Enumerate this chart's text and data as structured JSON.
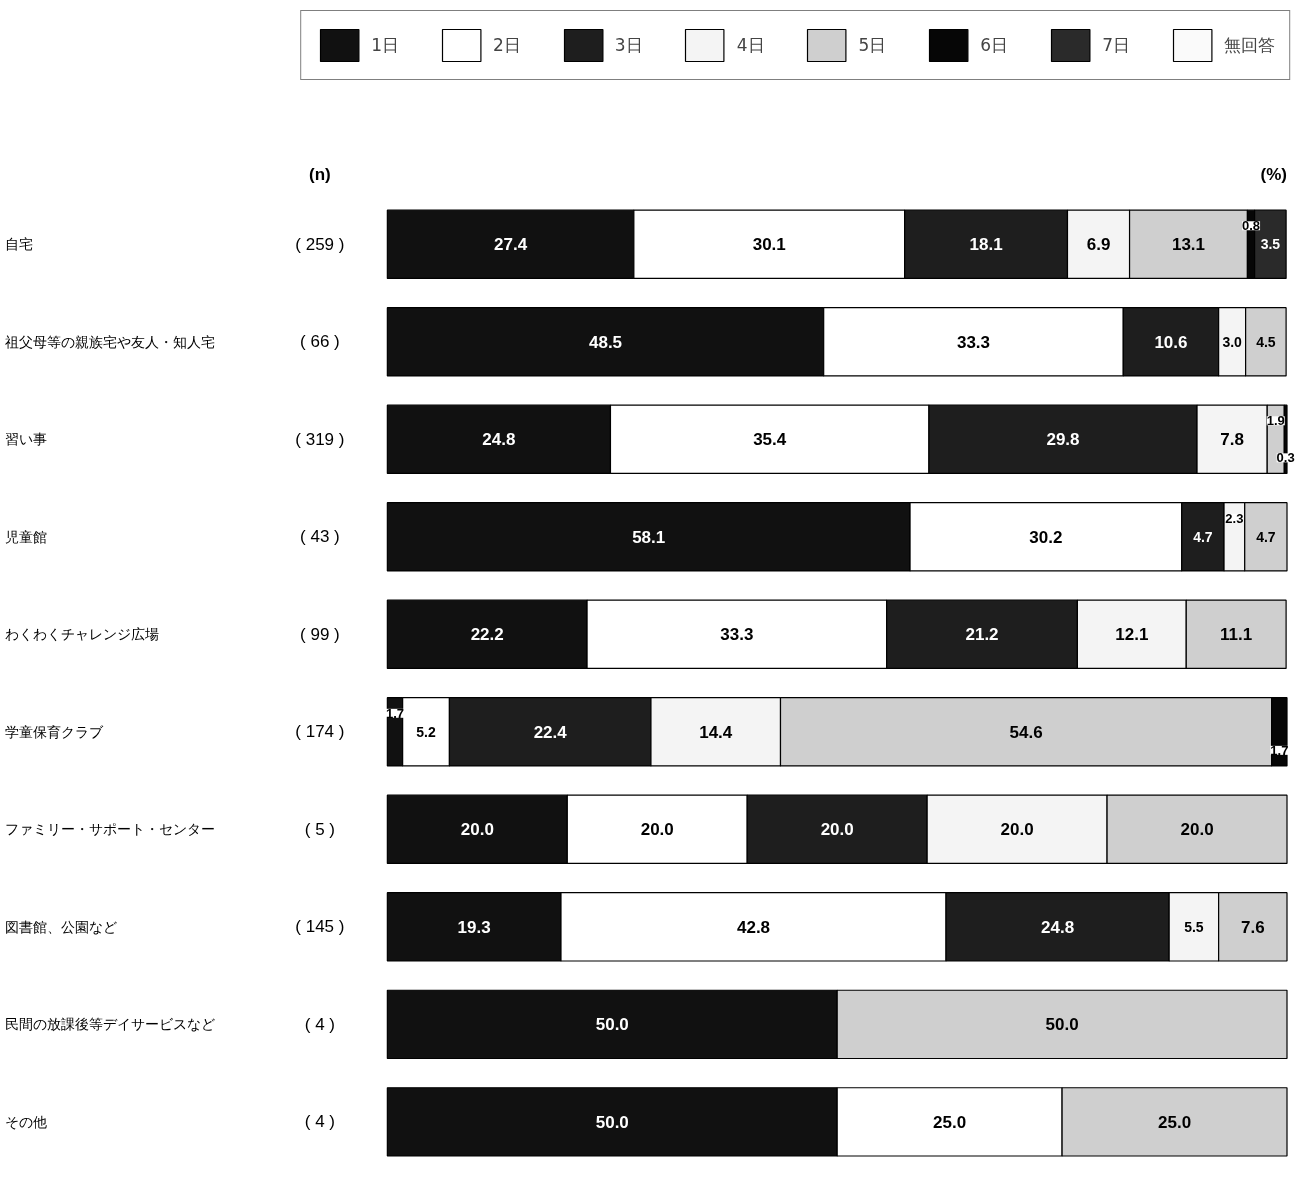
{
  "chart_data": {
    "type": "bar",
    "orientation": "horizontal",
    "stacked": true,
    "legend": "top",
    "grid": false,
    "categories": [
      "自宅",
      "祖父母等の親族宅や友人・知人宅",
      "習い事",
      "児童館",
      "わくわくチャレンジ広場",
      "学童保育クラブ",
      "ファミリー・サポート・センター",
      "図書館、公園など",
      "民間の放課後等デイサービスなど",
      "その他"
    ],
    "series": [
      {
        "name": "1日",
        "color": "#111111",
        "values": [
          27.4,
          48.5,
          24.8,
          58.1,
          22.2,
          1.7,
          20.0,
          19.3,
          50.0,
          50.0
        ],
        "value_labels": [
          "27.4",
          "48.5",
          "24.8",
          "58.1",
          "22.2",
          "1.7",
          "20.0",
          "19.3",
          "50.0",
          "50.0"
        ]
      },
      {
        "name": "2日",
        "color": "#ffffff",
        "values": [
          30.1,
          33.3,
          35.4,
          30.2,
          33.3,
          5.2,
          20.0,
          42.8,
          null,
          25.0
        ],
        "value_labels": [
          "30.1",
          "33.3",
          "35.4",
          "30.2",
          "33.3",
          "5.2",
          "20.0",
          "42.8",
          null,
          "25.0"
        ]
      },
      {
        "name": "3日",
        "color": "#1e1e1e",
        "values": [
          18.1,
          10.6,
          29.8,
          4.7,
          21.2,
          22.4,
          20.0,
          24.8,
          null,
          null
        ],
        "value_labels": [
          "18.1",
          "10.6",
          "29.8",
          "4.7",
          "21.2",
          "22.4",
          "20.0",
          "24.8",
          null,
          null
        ]
      },
      {
        "name": "4日",
        "color": "#f4f4f4",
        "values": [
          6.9,
          3.0,
          7.8,
          2.3,
          12.1,
          14.4,
          20.0,
          5.5,
          null,
          null
        ],
        "value_labels": [
          "6.9",
          "3.0",
          "7.8",
          "2.3",
          "12.1",
          "14.4",
          "20.0",
          "5.5",
          null,
          null
        ]
      },
      {
        "name": "5日",
        "color": "#cfcfcf",
        "values": [
          13.1,
          4.5,
          1.9,
          4.7,
          11.1,
          54.6,
          20.0,
          7.6,
          50.0,
          25.0
        ],
        "value_labels": [
          "13.1",
          "4.5",
          "1.9",
          "4.7",
          "11.1",
          "54.6",
          "20.0",
          "7.6",
          "50.0",
          "25.0"
        ]
      },
      {
        "name": "6日",
        "color": "#060606",
        "values": [
          0.8,
          null,
          0.3,
          null,
          null,
          1.7,
          null,
          null,
          null,
          null
        ],
        "value_labels": [
          "0.8",
          null,
          "0.3",
          null,
          null,
          "1.7",
          null,
          null,
          null,
          null
        ]
      },
      {
        "name": "7日",
        "color": "#2a2a2a",
        "values": [
          3.5,
          null,
          null,
          null,
          null,
          null,
          null,
          null,
          null,
          null
        ],
        "value_labels": [
          "3.5",
          null,
          null,
          null,
          null,
          null,
          null,
          null,
          null,
          null
        ]
      },
      {
        "name": "無回答",
        "color": "#fafafa",
        "values": [
          null,
          null,
          null,
          null,
          null,
          null,
          null,
          null,
          null,
          null
        ]
      }
    ],
    "annotations": [
      "(n)",
      "(%)",
      "( 259 )",
      "( 66 )",
      "( 319 )",
      "( 43 )",
      "( 99 )",
      "( 174 )",
      "( 5 )",
      "( 145 )",
      "( 4 )",
      "( 4 )"
    ]
  }
}
